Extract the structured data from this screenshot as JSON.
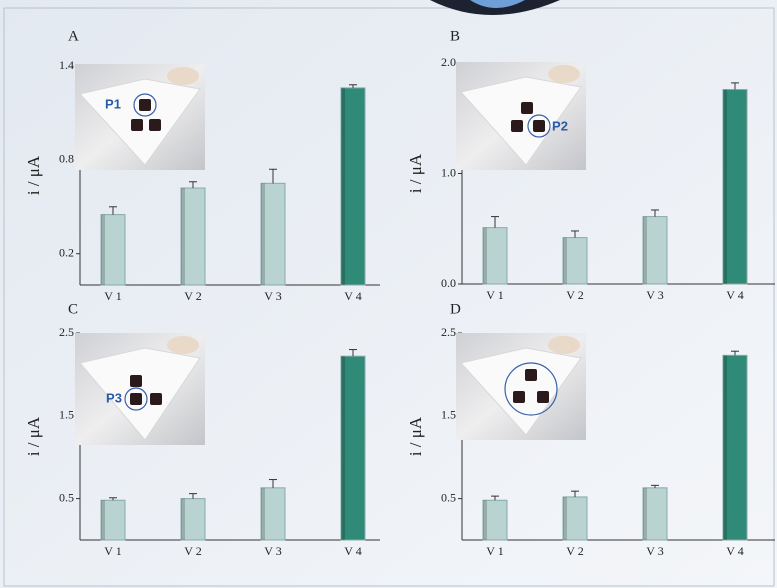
{
  "chart_data": [
    {
      "type": "bar",
      "title": "A",
      "ylabel": "i / μA",
      "annotation": "P1",
      "categories": [
        "V 1",
        "V 2",
        "V 3",
        "V 4"
      ],
      "values": [
        0.45,
        0.62,
        0.65,
        1.26
      ],
      "errors": [
        0.05,
        0.04,
        0.09,
        0.02
      ],
      "colors": [
        "#b9d3d0",
        "#b9d3d0",
        "#b9d3d0",
        "#2f8a78"
      ],
      "ylim": [
        0,
        1.4
      ],
      "yticks": [
        0.2,
        0.8,
        1.4
      ]
    },
    {
      "type": "bar",
      "title": "B",
      "ylabel": "i / μA",
      "annotation": "P2",
      "categories": [
        "V 1",
        "V 2",
        "V 3",
        "V 4"
      ],
      "values": [
        0.51,
        0.42,
        0.61,
        1.76
      ],
      "errors": [
        0.1,
        0.06,
        0.06,
        0.06
      ],
      "colors": [
        "#b9d3d0",
        "#b9d3d0",
        "#b9d3d0",
        "#2f8a78"
      ],
      "ylim": [
        0,
        2.0
      ],
      "yticks": [
        {
          "value": 0,
          "label": "0.0"
        },
        {
          "value": 1,
          "label": "1.0"
        },
        {
          "value": 2,
          "label": "2.0"
        }
      ]
    },
    {
      "type": "bar",
      "title": "C",
      "ylabel": "i / μA",
      "annotation": "P3",
      "categories": [
        "V 1",
        "V 2",
        "V 3",
        "V 4"
      ],
      "values": [
        0.48,
        0.5,
        0.63,
        2.22
      ],
      "errors": [
        0.03,
        0.06,
        0.1,
        0.08
      ],
      "colors": [
        "#b9d3d0",
        "#b9d3d0",
        "#b9d3d0",
        "#2f8a78"
      ],
      "ylim": [
        0,
        2.5
      ],
      "yticks": [
        0.5,
        1.5,
        2.5
      ]
    },
    {
      "type": "bar",
      "title": "D",
      "ylabel": "i / μA",
      "categories": [
        "V 1",
        "V 2",
        "V 3",
        "V 4"
      ],
      "values": [
        0.48,
        0.52,
        0.63,
        2.23
      ],
      "errors": [
        0.05,
        0.07,
        0.03,
        0.05
      ],
      "colors": [
        "#b9d3d0",
        "#b9d3d0",
        "#b9d3d0",
        "#2f8a78"
      ],
      "ylim": [
        0,
        2.5
      ],
      "yticks": [
        0.5,
        1.5,
        2.5
      ]
    }
  ]
}
